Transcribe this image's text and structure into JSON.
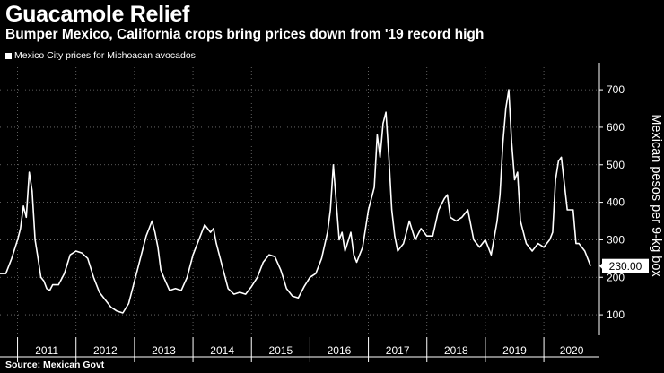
{
  "chart_data": {
    "type": "line",
    "title": "Guacamole Relief",
    "subtitle": "Bumper Mexico, California crops bring prices down from '19 record high",
    "series": [
      {
        "name": "Mexico City prices for Michoacan avocados",
        "x": [
          2010.7,
          2010.8,
          2010.9,
          2011.0,
          2011.05,
          2011.1,
          2011.15,
          2011.2,
          2011.25,
          2011.3,
          2011.35,
          2011.4,
          2011.45,
          2011.5,
          2011.55,
          2011.6,
          2011.7,
          2011.8,
          2011.9,
          2012.0,
          2012.1,
          2012.2,
          2012.3,
          2012.4,
          2012.5,
          2012.6,
          2012.65,
          2012.7,
          2012.8,
          2012.9,
          2013.0,
          2013.1,
          2013.2,
          2013.3,
          2013.35,
          2013.4,
          2013.45,
          2013.5,
          2013.6,
          2013.7,
          2013.8,
          2013.9,
          2014.0,
          2014.1,
          2014.2,
          2014.3,
          2014.35,
          2014.4,
          2014.5,
          2014.6,
          2014.7,
          2014.8,
          2014.9,
          2015.0,
          2015.1,
          2015.2,
          2015.3,
          2015.4,
          2015.5,
          2015.55,
          2015.6,
          2015.7,
          2015.8,
          2015.9,
          2016.0,
          2016.1,
          2016.2,
          2016.3,
          2016.35,
          2016.4,
          2016.5,
          2016.55,
          2016.6,
          2016.7,
          2016.75,
          2016.8,
          2016.9,
          2017.0,
          2017.1,
          2017.15,
          2017.2,
          2017.25,
          2017.3,
          2017.35,
          2017.4,
          2017.45,
          2017.5,
          2017.55,
          2017.6,
          2017.7,
          2017.8,
          2017.9,
          2018.0,
          2018.1,
          2018.2,
          2018.3,
          2018.35,
          2018.4,
          2018.5,
          2018.6,
          2018.7,
          2018.8,
          2018.9,
          2019.0,
          2019.1,
          2019.2,
          2019.25,
          2019.3,
          2019.35,
          2019.4,
          2019.45,
          2019.5,
          2019.55,
          2019.6,
          2019.7,
          2019.8,
          2019.9,
          2020.0,
          2020.1,
          2020.15,
          2020.2,
          2020.25,
          2020.3,
          2020.4,
          2020.5,
          2020.55,
          2020.6,
          2020.7,
          2020.8
        ],
        "values": [
          210,
          210,
          250,
          300,
          330,
          390,
          360,
          480,
          430,
          300,
          250,
          200,
          190,
          170,
          165,
          180,
          180,
          210,
          260,
          270,
          265,
          250,
          200,
          160,
          140,
          120,
          115,
          110,
          105,
          130,
          190,
          250,
          310,
          350,
          320,
          280,
          220,
          200,
          165,
          170,
          165,
          200,
          260,
          300,
          340,
          320,
          330,
          290,
          230,
          170,
          155,
          160,
          155,
          175,
          200,
          240,
          260,
          255,
          220,
          195,
          170,
          150,
          145,
          175,
          200,
          210,
          250,
          320,
          380,
          500,
          300,
          320,
          270,
          320,
          260,
          240,
          280,
          380,
          440,
          580,
          520,
          610,
          640,
          520,
          380,
          310,
          270,
          280,
          290,
          350,
          300,
          330,
          310,
          310,
          380,
          410,
          420,
          360,
          350,
          360,
          380,
          300,
          280,
          300,
          260,
          350,
          420,
          560,
          650,
          700,
          560,
          460,
          480,
          350,
          290,
          270,
          290,
          280,
          300,
          320,
          460,
          510,
          520,
          380,
          380,
          290,
          290,
          270,
          230
        ]
      }
    ],
    "legend": "Mexico City prices for Michoacan avocados",
    "ylabel": "Mexican pesos per 9-kg box",
    "xlabel": "",
    "yticks": [
      100,
      200,
      300,
      400,
      500,
      600,
      700
    ],
    "ylim": [
      50,
      760
    ],
    "xlim": [
      2010.7,
      2020.95
    ],
    "xcategories": [
      "2011",
      "2012",
      "2013",
      "2014",
      "2015",
      "2016",
      "2017",
      "2018",
      "2019",
      "2020"
    ],
    "last_value_label": "230.00",
    "last_value": 230,
    "grid": true,
    "source": "Source: Mexican Govt"
  }
}
